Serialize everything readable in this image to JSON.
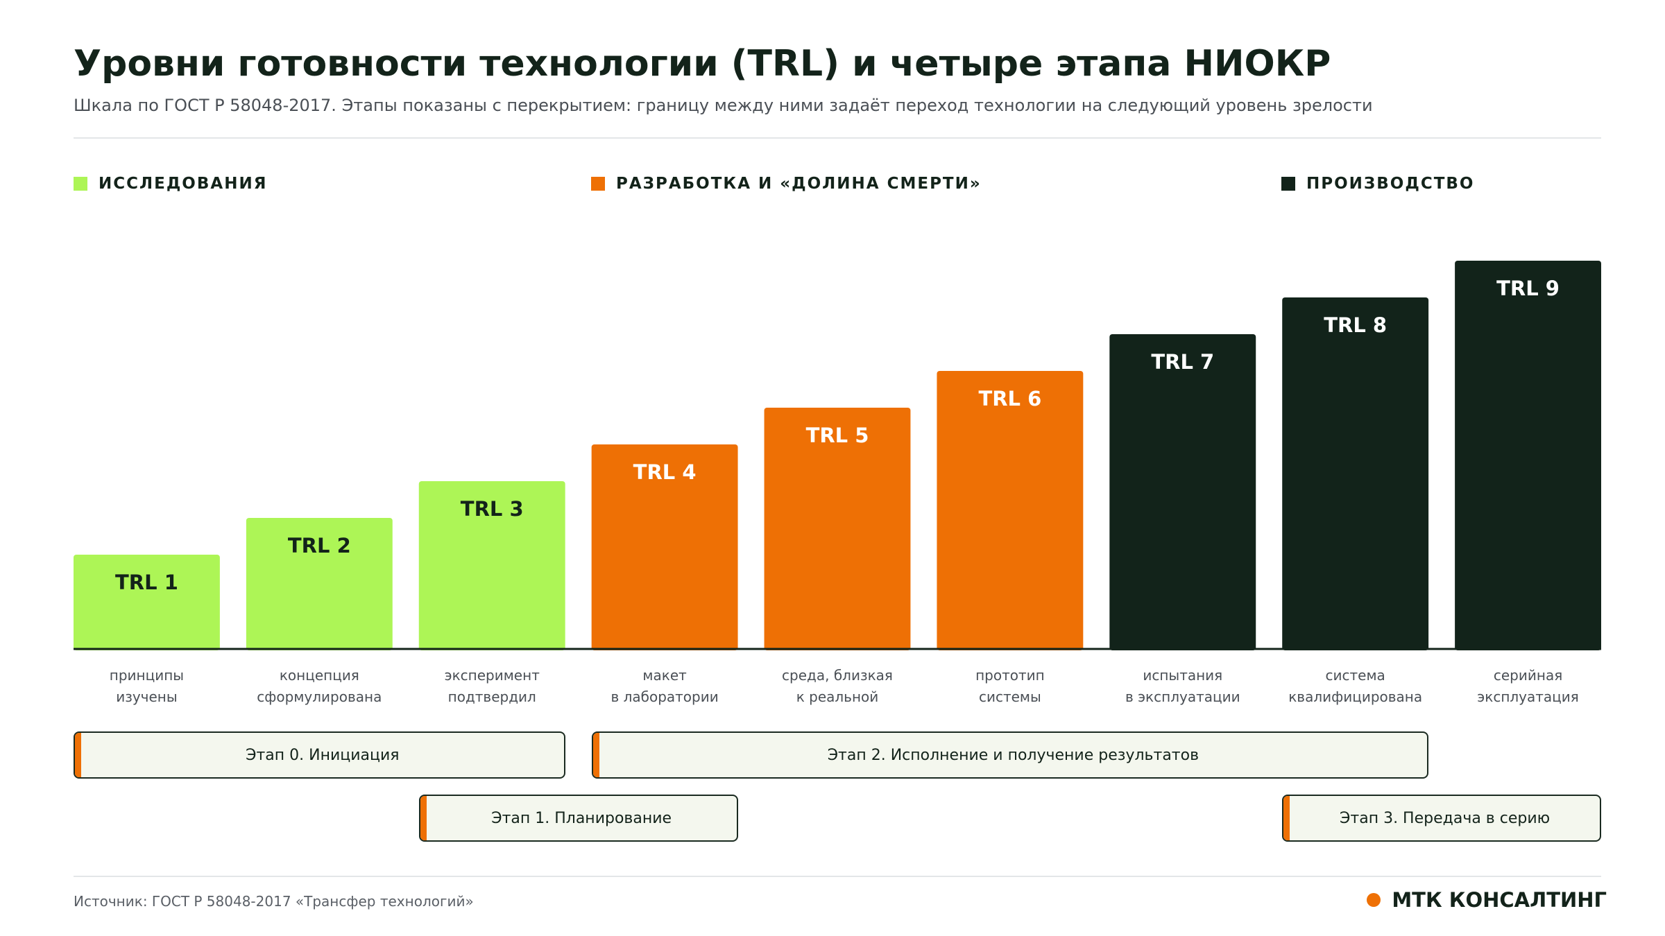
{
  "title": "Уровни готовности технологии (TRL) и четыре этапа НИОКР",
  "subtitle": "Шкала по ГОСТ Р 58048-2017. Этапы показаны с перекрытием: границу между ними задаёт переход технологии на следующий уровень зрелости",
  "colors": {
    "research": "#adf556",
    "development": "#ee7005",
    "production": "#12231a",
    "accent": "#ee7005"
  },
  "legend": [
    {
      "label": "ИССЛЕДОВАНИЯ",
      "color": "#adf556"
    },
    {
      "label": "РАЗРАБОТКА И «ДОЛИНА СМЕРТИ»",
      "color": "#ee7005"
    },
    {
      "label": "ПРОИЗВОДСТВО",
      "color": "#12231a"
    }
  ],
  "chart_data": {
    "type": "bar",
    "title": "Уровни готовности технологии (TRL) и четыре этапа НИОКР",
    "xlabel": "",
    "ylabel": "",
    "ylim": [
      0,
      9
    ],
    "grid": false,
    "legend_position": "top",
    "categories": [
      "TRL 1",
      "TRL 2",
      "TRL 3",
      "TRL 4",
      "TRL 5",
      "TRL 6",
      "TRL 7",
      "TRL 8",
      "TRL 9"
    ],
    "values": [
      1,
      2,
      3,
      4,
      5,
      6,
      7,
      8,
      9
    ],
    "groups": [
      "research",
      "research",
      "research",
      "development",
      "development",
      "development",
      "production",
      "production",
      "production"
    ],
    "descriptions": [
      [
        "принципы",
        "изучены"
      ],
      [
        "концепция",
        "сформулирована"
      ],
      [
        "эксперимент",
        "подтвердил"
      ],
      [
        "макет",
        "в лаборатории"
      ],
      [
        "среда, близкая",
        "к реальной"
      ],
      [
        "прототип",
        "системы"
      ],
      [
        "испытания",
        "в эксплуатации"
      ],
      [
        "система",
        "квалифицирована"
      ],
      [
        "серийная",
        "эксплуатация"
      ]
    ]
  },
  "stages": [
    {
      "label": "Этап 0. Инициация",
      "from_trl": 1,
      "to_trl": 3,
      "row": 0
    },
    {
      "label": "Этап 2. Исполнение и получение результатов",
      "from_trl": 4,
      "to_trl": 8,
      "row": 0
    },
    {
      "label": "Этап 1. Планирование",
      "from_trl": 3,
      "to_trl": 4,
      "row": 1
    },
    {
      "label": "Этап 3. Передача в серию",
      "from_trl": 8,
      "to_trl": 9,
      "row": 1
    }
  ],
  "footer": {
    "source": "Источник: ГОСТ Р 58048-2017 «Трансфер технологий»",
    "brand": "МТК КОНСАЛТИНГ"
  }
}
